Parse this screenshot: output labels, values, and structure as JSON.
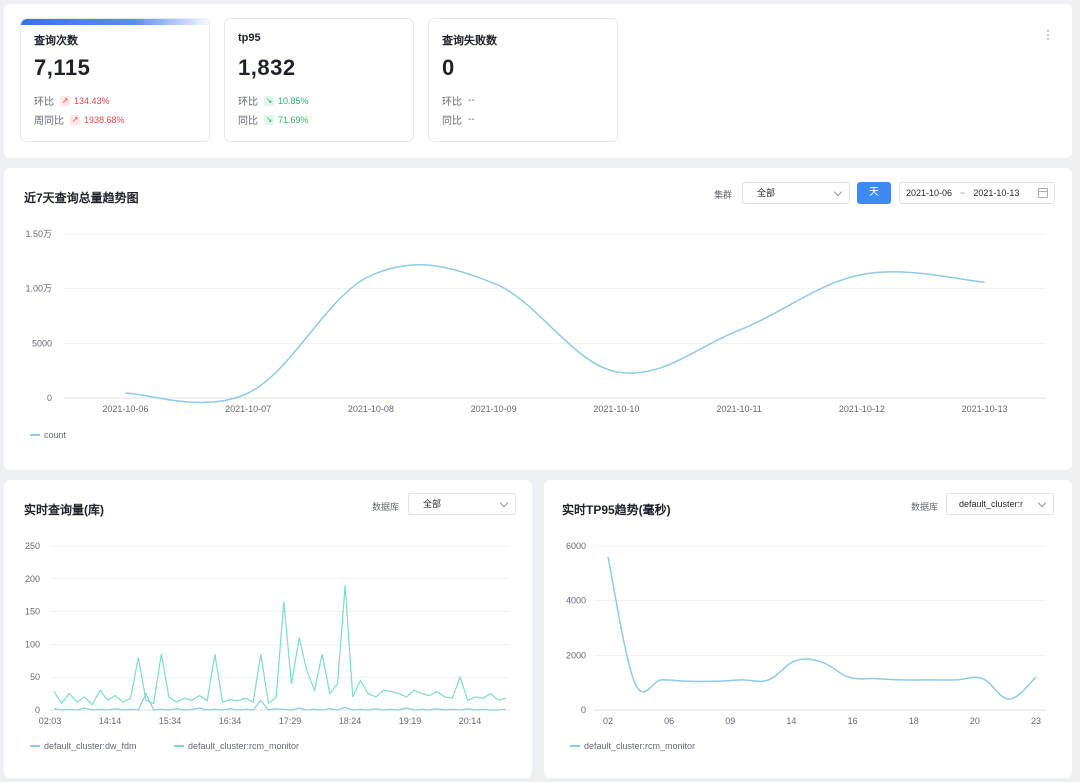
{
  "stats": [
    {
      "title": "查询次数",
      "value": "7,115",
      "rows": [
        {
          "label": "环比",
          "dir": "up",
          "value": "134.43%"
        },
        {
          "label": "周同比",
          "dir": "up",
          "value": "1938.68%"
        }
      ]
    },
    {
      "title": "tp95",
      "value": "1,832",
      "rows": [
        {
          "label": "环比",
          "dir": "down",
          "value": "10.85%"
        },
        {
          "label": "同比",
          "dir": "down",
          "value": "71.69%"
        }
      ]
    },
    {
      "title": "查询失败数",
      "value": "0",
      "rows": [
        {
          "label": "环比",
          "dir": "none",
          "value": "--"
        },
        {
          "label": "同比",
          "dir": "none",
          "value": "--"
        }
      ]
    }
  ],
  "more_icon": "kebab-icon",
  "trend": {
    "title": "近7天查询总量趋势图",
    "cluster_label": "集群",
    "cluster_value": "全部",
    "granularity_button": "天",
    "date_start": "2021-10-06",
    "date_sep": "~",
    "date_end": "2021-10-13"
  },
  "realtime_db": {
    "title": "实时查询量(库)",
    "db_label": "数据库",
    "db_value": "全部"
  },
  "realtime_tp95": {
    "title": "实时TP95趋势(毫秒)",
    "db_label": "数据库",
    "db_value": "default_cluster:r"
  },
  "colors": {
    "accent": "#3d8bf0",
    "line_blue": "#8ecae6",
    "line_teal": "#7fdcc4",
    "up": "#e5484d",
    "down": "#2fb36b"
  },
  "chart_data": [
    {
      "type": "line",
      "categories": [
        "2021-10-06",
        "2021-10-07",
        "2021-10-08",
        "2021-10-09",
        "2021-10-10",
        "2021-10-11",
        "2021-10-12",
        "2021-10-13"
      ],
      "series": [
        {
          "name": "count",
          "values": [
            450,
            450,
            11200,
            10500,
            2400,
            6200,
            11300,
            10600
          ]
        }
      ],
      "ylim": [
        0,
        15000
      ],
      "yticks": [
        0,
        5000,
        10000,
        15000
      ],
      "ytick_labels": [
        "0",
        "5000",
        "1.00万",
        "1.50万"
      ],
      "grid": true,
      "legend": "bottom-left"
    },
    {
      "type": "line",
      "x_labels": [
        "02:03",
        "14:14",
        "15:34",
        "16:34",
        "17:29",
        "18:24",
        "19:19",
        "20:14"
      ],
      "series": [
        {
          "name": "default_cluster:dw_fdm",
          "values": [
            2,
            0,
            1,
            0,
            3,
            0,
            1,
            0,
            2,
            0,
            1,
            0,
            25,
            0,
            1,
            0,
            2,
            0,
            1,
            3,
            0,
            1,
            0,
            2,
            0,
            1,
            0,
            15,
            0,
            2,
            1,
            0,
            3,
            0,
            1,
            0,
            2,
            0,
            4,
            0,
            1,
            0,
            2,
            0,
            1,
            0,
            3,
            0,
            1,
            0,
            2,
            0,
            1,
            0,
            2,
            0,
            1,
            0,
            0,
            1
          ]
        },
        {
          "name": "default_cluster:rcm_monitor",
          "values": [
            28,
            10,
            25,
            12,
            20,
            8,
            30,
            15,
            22,
            12,
            18,
            80,
            15,
            10,
            85,
            20,
            12,
            18,
            15,
            22,
            14,
            85,
            12,
            16,
            14,
            18,
            12,
            85,
            10,
            20,
            165,
            40,
            110,
            60,
            30,
            85,
            25,
            40,
            190,
            20,
            45,
            25,
            20,
            30,
            28,
            25,
            20,
            30,
            25,
            22,
            28,
            20,
            18,
            50,
            15,
            20,
            18,
            25,
            15,
            18
          ]
        }
      ],
      "ylim": [
        0,
        250
      ],
      "yticks": [
        0,
        50,
        100,
        150,
        200,
        250
      ],
      "grid": true,
      "legend": "bottom-left"
    },
    {
      "type": "line",
      "x_labels": [
        "02",
        "06",
        "09",
        "14",
        "16",
        "18",
        "20",
        "23"
      ],
      "series": [
        {
          "name": "default_cluster:rcm_monitor",
          "values": [
            5600,
            1000,
            1100,
            1050,
            1050,
            1100,
            1100,
            1800,
            1750,
            1200,
            1150,
            1100,
            1100,
            1100,
            1150,
            400,
            1200
          ]
        }
      ],
      "ylim": [
        0,
        6000
      ],
      "yticks": [
        0,
        2000,
        4000,
        6000
      ],
      "grid": true,
      "legend": "bottom-left"
    }
  ]
}
